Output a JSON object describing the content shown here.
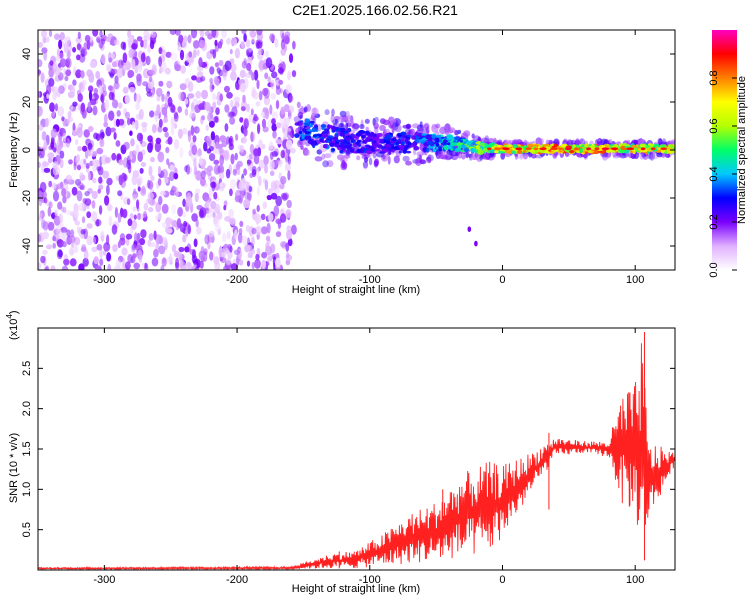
{
  "chart_data": [
    {
      "type": "heatmap",
      "title": "C2E1.2025.166.02.56.R21",
      "xlabel": "Height of straight line (km)",
      "ylabel": "Frequency (Hz)",
      "xlim": [
        -350,
        130
      ],
      "ylim": [
        -50,
        50
      ],
      "xticks": [
        -300,
        -200,
        -100,
        0,
        100
      ],
      "xtick_labels": [
        "-300",
        "-200",
        "-100",
        "0",
        "100"
      ],
      "yticks": [
        -40,
        -20,
        0,
        20,
        40
      ],
      "ytick_labels": [
        "-40",
        "-20",
        "0",
        "20",
        "40"
      ],
      "colorbar": {
        "label": "Normalized spectral amplitude",
        "range": [
          0,
          1
        ],
        "ticks": [
          0.0,
          0.2,
          0.4,
          0.6,
          0.8
        ],
        "tick_labels": [
          "0.0",
          "0.2",
          "0.4",
          "0.6",
          "0.8"
        ],
        "colors": [
          "#ffffff",
          "#e0b0ff",
          "#7a00ff",
          "#0000ff",
          "#00c8ff",
          "#00ff66",
          "#b4ff00",
          "#ffff00",
          "#ff8000",
          "#ff0000",
          "#ff00c0"
        ]
      },
      "noise_region": {
        "x_range": [
          -350,
          -157
        ],
        "amplitude": 0.2
      },
      "ridge": [
        {
          "x": -155,
          "y": 10,
          "spread": 6,
          "amplitude": 0.35
        },
        {
          "x": -140,
          "y": 6,
          "spread": 7,
          "amplitude": 0.35
        },
        {
          "x": -120,
          "y": 4,
          "spread": 7,
          "amplitude": 0.3
        },
        {
          "x": -100,
          "y": 3,
          "spread": 6,
          "amplitude": 0.3
        },
        {
          "x": -80,
          "y": 3,
          "spread": 6,
          "amplitude": 0.3
        },
        {
          "x": -60,
          "y": 3,
          "spread": 5,
          "amplitude": 0.35
        },
        {
          "x": -40,
          "y": 3,
          "spread": 4,
          "amplitude": 0.45
        },
        {
          "x": -20,
          "y": 1,
          "spread": 3,
          "amplitude": 0.6
        },
        {
          "x": 0,
          "y": 0.5,
          "spread": 2,
          "amplitude": 0.75
        },
        {
          "x": 20,
          "y": 0.5,
          "spread": 2,
          "amplitude": 0.8
        },
        {
          "x": 40,
          "y": 0.5,
          "spread": 2,
          "amplitude": 0.85
        },
        {
          "x": 60,
          "y": 0.5,
          "spread": 2,
          "amplitude": 0.8
        },
        {
          "x": 80,
          "y": 0.5,
          "spread": 2,
          "amplitude": 0.8
        },
        {
          "x": 100,
          "y": 0.5,
          "spread": 2,
          "amplitude": 0.75
        },
        {
          "x": 130,
          "y": 0.5,
          "spread": 2,
          "amplitude": 0.7
        }
      ],
      "outliers": [
        {
          "x": -25,
          "y": -33
        },
        {
          "x": -20,
          "y": -39
        },
        {
          "x": -280,
          "y": 7
        }
      ]
    },
    {
      "type": "line",
      "xlabel": "Height of straight line (km)",
      "ylabel": "SNR (10 * v/v)",
      "y_multiplier_label": "(x10",
      "y_multiplier_exponent": "4",
      "y_multiplier_close": ")",
      "xlim": [
        -350,
        130
      ],
      "ylim": [
        0,
        3.0
      ],
      "xticks": [
        -300,
        -200,
        -100,
        0,
        100
      ],
      "xtick_labels": [
        "-300",
        "-200",
        "-100",
        "0",
        "100"
      ],
      "yticks": [
        0.5,
        1.0,
        1.5,
        2.0,
        2.5
      ],
      "ytick_labels": [
        "0.5",
        "1.0",
        "1.5",
        "2.0",
        "2.5"
      ],
      "color": "#ff2020",
      "envelope": [
        {
          "x": -350,
          "low": 0.01,
          "high": 0.03
        },
        {
          "x": -160,
          "low": 0.01,
          "high": 0.04
        },
        {
          "x": -130,
          "low": 0.02,
          "high": 0.2
        },
        {
          "x": -110,
          "low": 0.02,
          "high": 0.25
        },
        {
          "x": -90,
          "low": 0.05,
          "high": 0.45
        },
        {
          "x": -70,
          "low": 0.08,
          "high": 0.7
        },
        {
          "x": -50,
          "low": 0.1,
          "high": 0.85
        },
        {
          "x": -30,
          "low": 0.15,
          "high": 1.2
        },
        {
          "x": -10,
          "low": 0.2,
          "high": 1.35
        },
        {
          "x": 0,
          "low": 0.4,
          "high": 1.3
        },
        {
          "x": 20,
          "low": 0.9,
          "high": 1.45
        },
        {
          "x": 40,
          "low": 1.4,
          "high": 1.65
        },
        {
          "x": 60,
          "low": 1.45,
          "high": 1.6
        },
        {
          "x": 80,
          "low": 1.4,
          "high": 1.6
        },
        {
          "x": 90,
          "low": 0.8,
          "high": 2.2
        },
        {
          "x": 100,
          "low": 0.7,
          "high": 2.3
        },
        {
          "x": 105,
          "low": 0.15,
          "high": 2.95
        },
        {
          "x": 110,
          "low": 0.6,
          "high": 1.6
        },
        {
          "x": 130,
          "low": 1.3,
          "high": 1.45
        }
      ],
      "spikes": [
        {
          "x": 107,
          "low": 0.12,
          "high": 2.95
        },
        {
          "x": 96,
          "low": 0.8,
          "high": 2.2
        },
        {
          "x": 35,
          "low": 0.75,
          "high": 1.7
        },
        {
          "x": -45,
          "low": 0.3,
          "high": 1.0
        },
        {
          "x": -123,
          "low": 0.02,
          "high": 0.23
        }
      ]
    }
  ]
}
